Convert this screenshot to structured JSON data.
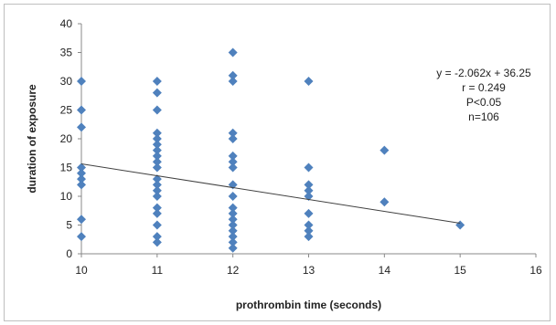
{
  "chart_data": {
    "type": "scatter",
    "title": "",
    "xlabel": "prothrombin time (seconds)",
    "ylabel": "duration of exposure",
    "xlim": [
      10,
      16
    ],
    "ylim": [
      0,
      40
    ],
    "x_ticks": [
      "10",
      "11",
      "12",
      "13",
      "14",
      "15",
      "16"
    ],
    "y_ticks": [
      "0",
      "5",
      "10",
      "15",
      "20",
      "25",
      "30",
      "35",
      "40"
    ],
    "grid": false,
    "marker_color": "#4f81bd",
    "trendline_color": "#404040",
    "points": [
      {
        "x": 10,
        "y": 30
      },
      {
        "x": 10,
        "y": 25
      },
      {
        "x": 10,
        "y": 22
      },
      {
        "x": 10,
        "y": 15
      },
      {
        "x": 10,
        "y": 14
      },
      {
        "x": 10,
        "y": 13
      },
      {
        "x": 10,
        "y": 12
      },
      {
        "x": 10,
        "y": 6
      },
      {
        "x": 10,
        "y": 3
      },
      {
        "x": 11,
        "y": 30
      },
      {
        "x": 11,
        "y": 28
      },
      {
        "x": 11,
        "y": 25
      },
      {
        "x": 11,
        "y": 21
      },
      {
        "x": 11,
        "y": 20
      },
      {
        "x": 11,
        "y": 19
      },
      {
        "x": 11,
        "y": 18
      },
      {
        "x": 11,
        "y": 17
      },
      {
        "x": 11,
        "y": 16
      },
      {
        "x": 11,
        "y": 15
      },
      {
        "x": 11,
        "y": 13
      },
      {
        "x": 11,
        "y": 12
      },
      {
        "x": 11,
        "y": 11
      },
      {
        "x": 11,
        "y": 10
      },
      {
        "x": 11,
        "y": 8
      },
      {
        "x": 11,
        "y": 7
      },
      {
        "x": 11,
        "y": 5
      },
      {
        "x": 11,
        "y": 3
      },
      {
        "x": 11,
        "y": 2
      },
      {
        "x": 12,
        "y": 35
      },
      {
        "x": 12,
        "y": 31
      },
      {
        "x": 12,
        "y": 30
      },
      {
        "x": 12,
        "y": 21
      },
      {
        "x": 12,
        "y": 20
      },
      {
        "x": 12,
        "y": 17
      },
      {
        "x": 12,
        "y": 16
      },
      {
        "x": 12,
        "y": 15
      },
      {
        "x": 12,
        "y": 12
      },
      {
        "x": 12,
        "y": 10
      },
      {
        "x": 12,
        "y": 8
      },
      {
        "x": 12,
        "y": 7
      },
      {
        "x": 12,
        "y": 6
      },
      {
        "x": 12,
        "y": 5
      },
      {
        "x": 12,
        "y": 4
      },
      {
        "x": 12,
        "y": 3
      },
      {
        "x": 12,
        "y": 2
      },
      {
        "x": 12,
        "y": 1
      },
      {
        "x": 13,
        "y": 30
      },
      {
        "x": 13,
        "y": 15
      },
      {
        "x": 13,
        "y": 12
      },
      {
        "x": 13,
        "y": 11
      },
      {
        "x": 13,
        "y": 10
      },
      {
        "x": 13,
        "y": 7
      },
      {
        "x": 13,
        "y": 5
      },
      {
        "x": 13,
        "y": 4
      },
      {
        "x": 13,
        "y": 3
      },
      {
        "x": 14,
        "y": 18
      },
      {
        "x": 14,
        "y": 9
      },
      {
        "x": 15,
        "y": 5
      }
    ],
    "trendline": {
      "slope": -2.062,
      "intercept": 36.25,
      "x_from": 10,
      "x_to": 15
    },
    "annotations": [
      "y = -2.062x + 36.25",
      "r = 0.249",
      "P<0.05",
      "n=106"
    ]
  }
}
